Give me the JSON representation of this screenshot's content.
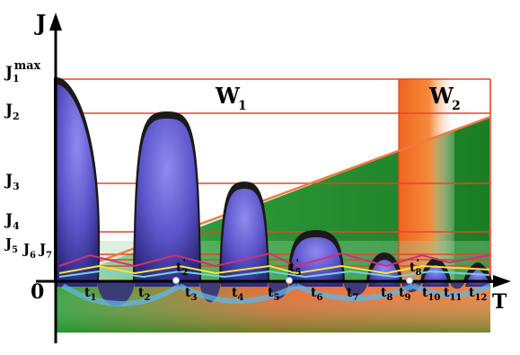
{
  "axes": {
    "y_label": "J",
    "x_label": "T",
    "origin_label": "0"
  },
  "regions": {
    "w1": "W",
    "w1_sub": "1",
    "w2": "W",
    "w2_sub": "2"
  },
  "levels": [
    {
      "base": "J",
      "sub": "1",
      "sup": "max"
    },
    {
      "base": "J",
      "sub": "2",
      "sup": ""
    },
    {
      "base": "J",
      "sub": "3",
      "sup": ""
    },
    {
      "base": "J",
      "sub": "4",
      "sup": ""
    },
    {
      "base": "J",
      "sub": "5",
      "sup": ""
    },
    {
      "base": "J",
      "sub": "6",
      "sup": ""
    },
    {
      "base": "J",
      "sub": "7",
      "sup": ""
    }
  ],
  "time_marks": [
    {
      "base": "t",
      "sub": "1"
    },
    {
      "base": "t",
      "sub": "2"
    },
    {
      "base": "t",
      "sub": "3"
    },
    {
      "base": "t",
      "sub": "4"
    },
    {
      "base": "t",
      "sub": "5"
    },
    {
      "base": "t",
      "sub": "6"
    },
    {
      "base": "t",
      "sub": "7"
    },
    {
      "base": "t",
      "sub": "8"
    },
    {
      "base": "t",
      "sub": "9"
    },
    {
      "base": "t",
      "sub": "10"
    },
    {
      "base": "t",
      "sub": "11"
    },
    {
      "base": "t",
      "sub": "12"
    }
  ],
  "upper_marks": [
    {
      "base": "t",
      "sub": "2",
      "sup": "'"
    },
    {
      "base": "t",
      "sub": "5",
      "sup": "'"
    },
    {
      "base": "t",
      "sub": "8",
      "sup": "'"
    }
  ],
  "colors": {
    "level_line": "#e8452a",
    "ramp_line": "#f07a40",
    "lobe_fill": "#5a52c8",
    "lobe_edge": "#1a1a1a",
    "green": "#1e8a2a",
    "orange": "#f06a20"
  }
}
